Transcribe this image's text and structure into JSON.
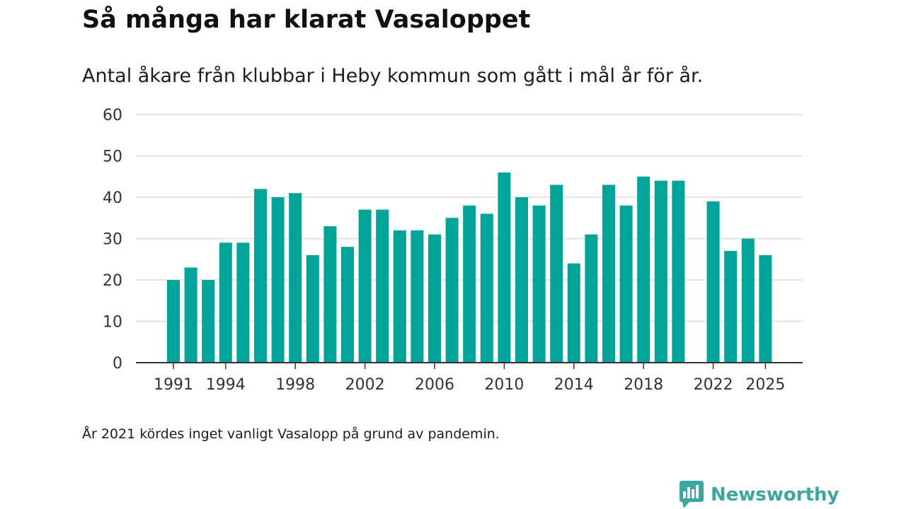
{
  "title": "Så många har klarat Vasaloppet",
  "subtitle": "Antal åkare från klubbar i Heby kommun som gått i mål år för år.",
  "note": "År 2021 kördes inget vanligt Vasalopp på grund av pandemin.",
  "brand": {
    "name": "Newsworthy",
    "icon": "newsworthy-logo-icon",
    "color": "#3aa8a0"
  },
  "chart_data": {
    "type": "bar",
    "title": "Så många har klarat Vasaloppet",
    "subtitle": "Antal åkare från klubbar i Heby kommun som gått i mål år för år.",
    "xlabel": "",
    "ylabel": "",
    "x": [
      1991,
      1992,
      1993,
      1994,
      1995,
      1996,
      1997,
      1998,
      1999,
      2000,
      2001,
      2002,
      2003,
      2004,
      2005,
      2006,
      2007,
      2008,
      2009,
      2010,
      2011,
      2012,
      2013,
      2014,
      2015,
      2016,
      2017,
      2018,
      2019,
      2020,
      2021,
      2022,
      2023,
      2024,
      2025
    ],
    "values": [
      20,
      23,
      20,
      29,
      29,
      42,
      40,
      41,
      26,
      33,
      28,
      37,
      37,
      32,
      32,
      31,
      35,
      38,
      36,
      46,
      40,
      38,
      43,
      24,
      31,
      43,
      38,
      45,
      44,
      44,
      null,
      39,
      27,
      30,
      26
    ],
    "x_ticks": [
      "1991",
      "1994",
      "1998",
      "2002",
      "2006",
      "2010",
      "2014",
      "2018",
      "2022",
      "2025"
    ],
    "y_ticks": [
      "0",
      "10",
      "20",
      "30",
      "40",
      "50",
      "60"
    ],
    "ylim": [
      0,
      60
    ],
    "grid": true,
    "bar_color": "#00a498"
  }
}
